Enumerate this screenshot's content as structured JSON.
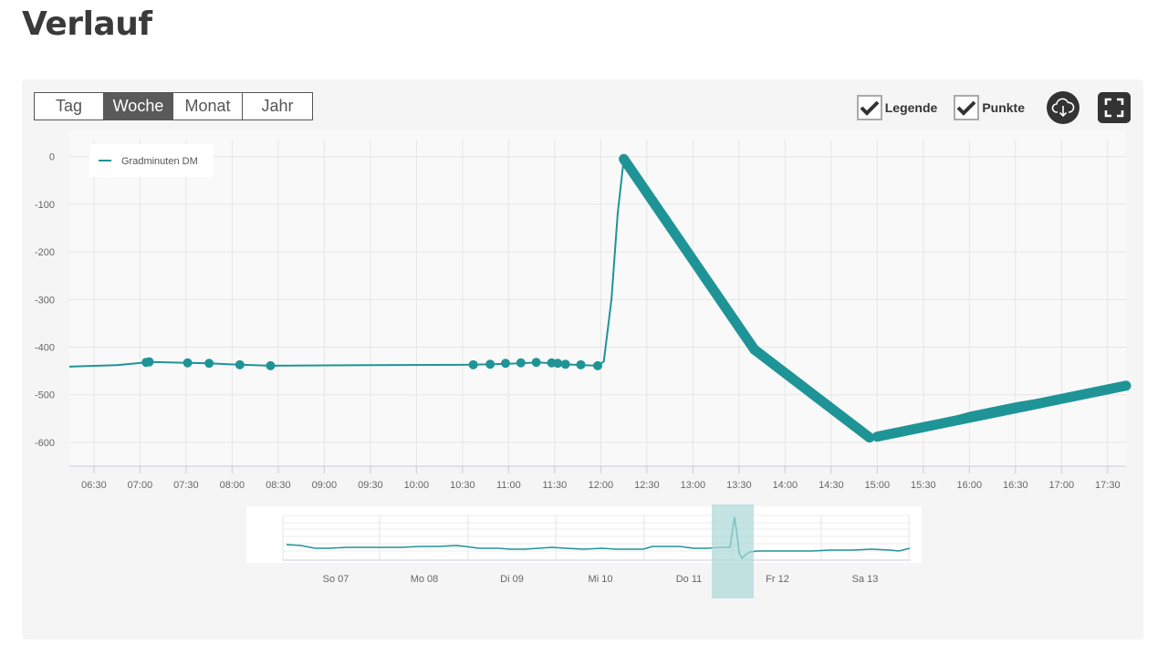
{
  "page": {
    "title": "Verlauf"
  },
  "controls": {
    "ranges": [
      {
        "label": "Tag",
        "active": false
      },
      {
        "label": "Woche",
        "active": true
      },
      {
        "label": "Monat",
        "active": false
      },
      {
        "label": "Jahr",
        "active": false
      }
    ],
    "legend_toggle": {
      "label": "Legende",
      "checked": true
    },
    "points_toggle": {
      "label": "Punkte",
      "checked": true
    },
    "download_icon": "cloud-download-icon",
    "fullscreen_icon": "fullscreen-icon"
  },
  "colors": {
    "series": "#1f9497",
    "navigator_band": "#a9d8d6",
    "active_range": "#5a5a5a"
  },
  "chart_data": {
    "type": "line",
    "title": "",
    "xlabel": "",
    "ylabel": "",
    "legend": {
      "show": true,
      "placement": "top-left",
      "entries": [
        "Gradminuten DM"
      ]
    },
    "grid": true,
    "xlim": [
      "06:14",
      "17:42"
    ],
    "ylim": [
      -650,
      55
    ],
    "x_ticks": [
      "06:30",
      "07:00",
      "07:30",
      "08:00",
      "08:30",
      "09:00",
      "09:30",
      "10:00",
      "10:30",
      "11:00",
      "11:30",
      "12:00",
      "12:30",
      "13:00",
      "13:30",
      "14:00",
      "14:30",
      "15:00",
      "15:30",
      "16:00",
      "16:30",
      "17:00",
      "17:30"
    ],
    "y_ticks": [
      0,
      -100,
      -200,
      -300,
      -400,
      -500,
      -600
    ],
    "series": [
      {
        "name": "Gradminuten DM",
        "line": [
          [
            "06:14",
            -441
          ],
          [
            "06:45",
            -438
          ],
          [
            "07:04",
            -432
          ],
          [
            "07:06",
            -431
          ],
          [
            "07:31",
            -433
          ],
          [
            "07:45",
            -434
          ],
          [
            "08:05",
            -437
          ],
          [
            "08:25",
            -439
          ],
          [
            "09:30",
            -438
          ],
          [
            "10:37",
            -437
          ],
          [
            "11:00",
            -435
          ],
          [
            "11:20",
            -432
          ],
          [
            "11:35",
            -436
          ],
          [
            "11:58",
            -439
          ],
          [
            "12:02",
            -430
          ],
          [
            "12:07",
            -300
          ],
          [
            "12:11",
            -120
          ],
          [
            "12:15",
            -5
          ],
          [
            "13:40",
            -405
          ],
          [
            "14:55",
            -590
          ],
          [
            "15:00",
            -588
          ],
          [
            "15:30",
            -565
          ],
          [
            "16:00",
            -538
          ],
          [
            "16:30",
            -518
          ],
          [
            "17:00",
            -502
          ],
          [
            "17:30",
            -485
          ],
          [
            "17:42",
            -481
          ]
        ],
        "points": [
          [
            "07:04",
            -432
          ],
          [
            "07:06",
            -431
          ],
          [
            "07:31",
            -433
          ],
          [
            "07:45",
            -434
          ],
          [
            "08:05",
            -437
          ],
          [
            "08:25",
            -439
          ],
          [
            "10:37",
            -437
          ],
          [
            "10:48",
            -436
          ],
          [
            "10:58",
            -434
          ],
          [
            "11:08",
            -433
          ],
          [
            "11:18",
            -432
          ],
          [
            "11:28",
            -433
          ],
          [
            "11:32",
            -434
          ],
          [
            "11:37",
            -436
          ],
          [
            "11:47",
            -437
          ],
          [
            "11:58",
            -439
          ]
        ],
        "dense_segments": [
          {
            "from": [
              "12:15",
              -5
            ],
            "to": [
              "13:40",
              -405
            ]
          },
          {
            "from": [
              "13:40",
              -405
            ],
            "to": [
              "14:55",
              -590
            ]
          },
          {
            "from": [
              "15:00",
              -588
            ],
            "to": [
              "17:42",
              -481
            ]
          }
        ]
      }
    ],
    "navigator": {
      "x_ticks": [
        "So 07",
        "Mo 08",
        "Di 09",
        "Mi 10",
        "Do 11",
        "Fr 12",
        "Sa 13"
      ],
      "selection": [
        "Do 11",
        "Fr 12"
      ]
    }
  }
}
